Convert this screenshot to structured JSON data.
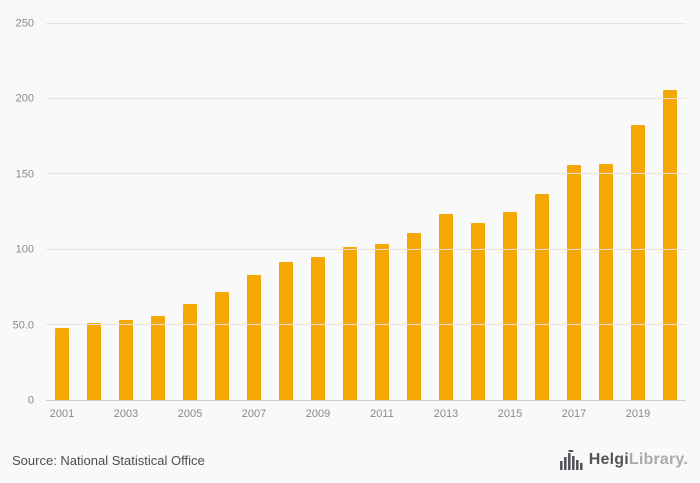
{
  "chart_data": {
    "type": "bar",
    "categories": [
      "2001",
      "2002",
      "2003",
      "2004",
      "2005",
      "2006",
      "2007",
      "2008",
      "2009",
      "2010",
      "2011",
      "2012",
      "2013",
      "2014",
      "2015",
      "2016",
      "2017",
      "2018",
      "2019",
      "2020"
    ],
    "values": [
      48,
      51,
      53,
      56,
      64,
      72,
      83,
      92,
      95,
      102,
      104,
      111,
      124,
      118,
      125,
      137,
      156,
      157,
      183,
      206
    ],
    "title": "",
    "xlabel": "",
    "ylabel": "",
    "ylim": [
      0,
      250
    ],
    "yticks": [
      0,
      50,
      100,
      150,
      200,
      250
    ],
    "ytick_labels": [
      "0",
      "50.0",
      "100",
      "150",
      "200",
      "250"
    ],
    "xtick_labels": [
      "2001",
      "2003",
      "2005",
      "2007",
      "2009",
      "2011",
      "2013",
      "2015",
      "2017",
      "2019"
    ],
    "bar_color": "#F5A800",
    "grid": true,
    "legend_position": "none",
    "background_color": "#f9f9f9"
  },
  "footer": {
    "source": "Source: National Statistical Office",
    "logo": {
      "brand_primary": "Helgi",
      "brand_secondary": "Library."
    }
  }
}
